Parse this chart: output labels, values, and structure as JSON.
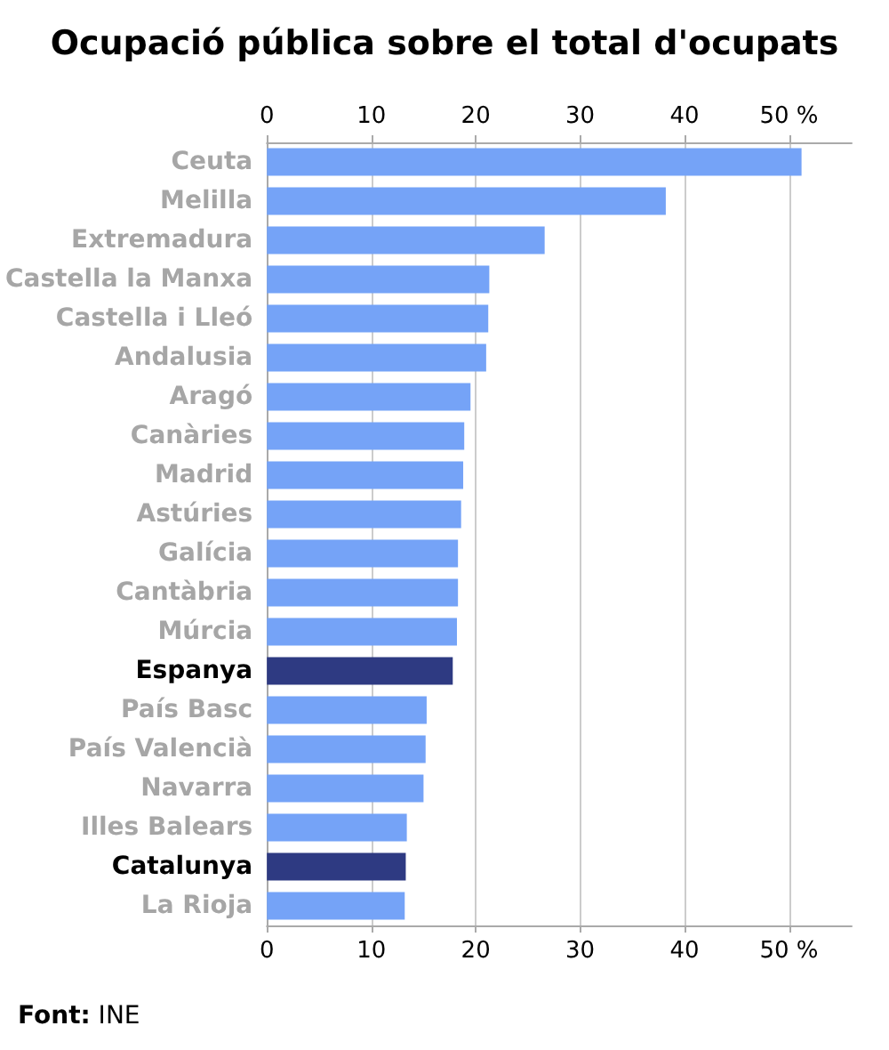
{
  "chart_data": {
    "type": "bar",
    "orientation": "horizontal",
    "title": "Ocupació pública sobre el total d'ocupats",
    "categories": [
      "Ceuta",
      "Melilla",
      "Extremadura",
      "Castella la Manxa",
      "Castella i Lleó",
      "Andalusia",
      "Aragó",
      "Canàries",
      "Madrid",
      "Astúries",
      "Galícia",
      "Cantàbria",
      "Múrcia",
      "Espanya",
      "País Basc",
      "País Valencià",
      "Navarra",
      "Illes Balears",
      "Catalunya",
      "La Rioja"
    ],
    "values": [
      51.2,
      38.2,
      26.6,
      21.3,
      21.2,
      21.0,
      19.5,
      18.9,
      18.8,
      18.6,
      18.3,
      18.3,
      18.2,
      17.8,
      15.3,
      15.2,
      15.0,
      13.4,
      13.3,
      13.2
    ],
    "colors": [
      "#75a3f7",
      "#75a3f7",
      "#75a3f7",
      "#75a3f7",
      "#75a3f7",
      "#75a3f7",
      "#75a3f7",
      "#75a3f7",
      "#75a3f7",
      "#75a3f7",
      "#75a3f7",
      "#75a3f7",
      "#75a3f7",
      "#2e3a82",
      "#75a3f7",
      "#75a3f7",
      "#75a3f7",
      "#75a3f7",
      "#2e3a82",
      "#75a3f7"
    ],
    "xlim": [
      0,
      56
    ],
    "xticks": [
      0,
      10,
      20,
      30,
      40,
      {
        "value": 50,
        "label": "50 %"
      }
    ],
    "x2lim": [
      0,
      56
    ],
    "x2ticks": [
      0,
      10,
      20,
      30,
      40,
      {
        "value": 50,
        "label": "50 %"
      }
    ],
    "grid": "x",
    "annotations": [
      "Font: INE"
    ]
  }
}
